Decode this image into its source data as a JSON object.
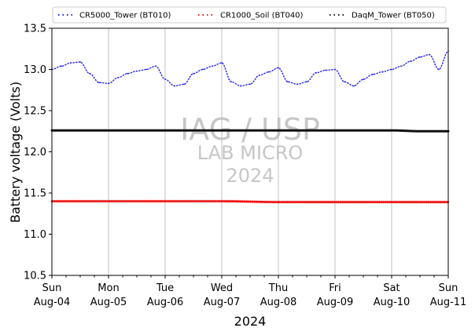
{
  "chart_data": {
    "type": "line",
    "xlabel": "2024",
    "ylabel": "Battery voltage (Volts)",
    "ylim": [
      10.5,
      13.5
    ],
    "yticks": [
      10.5,
      11.0,
      11.5,
      12.0,
      12.5,
      13.0,
      13.5
    ],
    "ytick_labels": [
      "10.5",
      "11.0",
      "11.5",
      "12.0",
      "12.5",
      "13.0",
      "13.5"
    ],
    "xlim": [
      "2024-08-04",
      "2024-08-11"
    ],
    "xticks": [
      {
        "weekday": "Sun",
        "date": "Aug-04"
      },
      {
        "weekday": "Mon",
        "date": "Aug-05"
      },
      {
        "weekday": "Tue",
        "date": "Aug-06"
      },
      {
        "weekday": "Wed",
        "date": "Aug-07"
      },
      {
        "weekday": "Thu",
        "date": "Aug-08"
      },
      {
        "weekday": "Fri",
        "date": "Aug-09"
      },
      {
        "weekday": "Sat",
        "date": "Aug-10"
      },
      {
        "weekday": "Sun",
        "date": "Aug-11"
      }
    ],
    "grid": "vertical",
    "legend": "top",
    "watermark": [
      "IAG / USP",
      "LAB MICRO",
      "2024"
    ],
    "series": [
      {
        "name": "CR5000_Tower (BT010)",
        "color": "#2222ee",
        "style": "dotted",
        "x": [
          "2024-08-04 00:00",
          "2024-08-04 04:00",
          "2024-08-04 08:00",
          "2024-08-04 12:00",
          "2024-08-04 16:00",
          "2024-08-04 20:00",
          "2024-08-05 00:00",
          "2024-08-05 04:00",
          "2024-08-05 08:00",
          "2024-08-05 12:00",
          "2024-08-05 16:00",
          "2024-08-05 20:00",
          "2024-08-06 00:00",
          "2024-08-06 04:00",
          "2024-08-06 08:00",
          "2024-08-06 12:00",
          "2024-08-06 16:00",
          "2024-08-06 20:00",
          "2024-08-07 00:00",
          "2024-08-07 04:00",
          "2024-08-07 08:00",
          "2024-08-07 12:00",
          "2024-08-07 16:00",
          "2024-08-07 20:00",
          "2024-08-08 00:00",
          "2024-08-08 04:00",
          "2024-08-08 08:00",
          "2024-08-08 12:00",
          "2024-08-08 16:00",
          "2024-08-08 20:00",
          "2024-08-09 00:00",
          "2024-08-09 04:00",
          "2024-08-09 08:00",
          "2024-08-09 12:00",
          "2024-08-09 16:00",
          "2024-08-09 20:00",
          "2024-08-10 00:00",
          "2024-08-10 04:00",
          "2024-08-10 08:00",
          "2024-08-10 12:00",
          "2024-08-10 16:00",
          "2024-08-10 20:00",
          "2024-08-11 00:00"
        ],
        "values": [
          13.0,
          13.04,
          13.08,
          13.09,
          12.95,
          12.84,
          12.83,
          12.9,
          12.95,
          12.98,
          13.0,
          13.04,
          12.88,
          12.8,
          12.82,
          12.95,
          13.0,
          13.04,
          13.08,
          12.85,
          12.8,
          12.82,
          12.93,
          12.97,
          13.02,
          12.85,
          12.82,
          12.85,
          12.96,
          12.99,
          13.0,
          12.85,
          12.8,
          12.88,
          12.94,
          12.97,
          13.0,
          13.04,
          13.1,
          13.15,
          13.18,
          13.0,
          13.22
        ]
      },
      {
        "name": "CR1000_Soil (BT040)",
        "color": "#ee1111",
        "style": "dotted",
        "x": [
          "2024-08-04 00:00",
          "2024-08-05 00:00",
          "2024-08-06 00:00",
          "2024-08-07 00:00",
          "2024-08-08 00:00",
          "2024-08-09 00:00",
          "2024-08-10 00:00",
          "2024-08-11 00:00"
        ],
        "values": [
          11.4,
          11.4,
          11.4,
          11.4,
          11.39,
          11.39,
          11.39,
          11.39
        ]
      },
      {
        "name": "DaqM_Tower (BT050)",
        "color": "#111111",
        "style": "dotted",
        "x": [
          "2024-08-04 00:00",
          "2024-08-05 00:00",
          "2024-08-06 00:00",
          "2024-08-07 00:00",
          "2024-08-08 00:00",
          "2024-08-09 00:00",
          "2024-08-10 00:00",
          "2024-08-10 12:00",
          "2024-08-11 00:00"
        ],
        "values": [
          12.26,
          12.26,
          12.26,
          12.26,
          12.26,
          12.26,
          12.26,
          12.25,
          12.25
        ]
      }
    ]
  }
}
